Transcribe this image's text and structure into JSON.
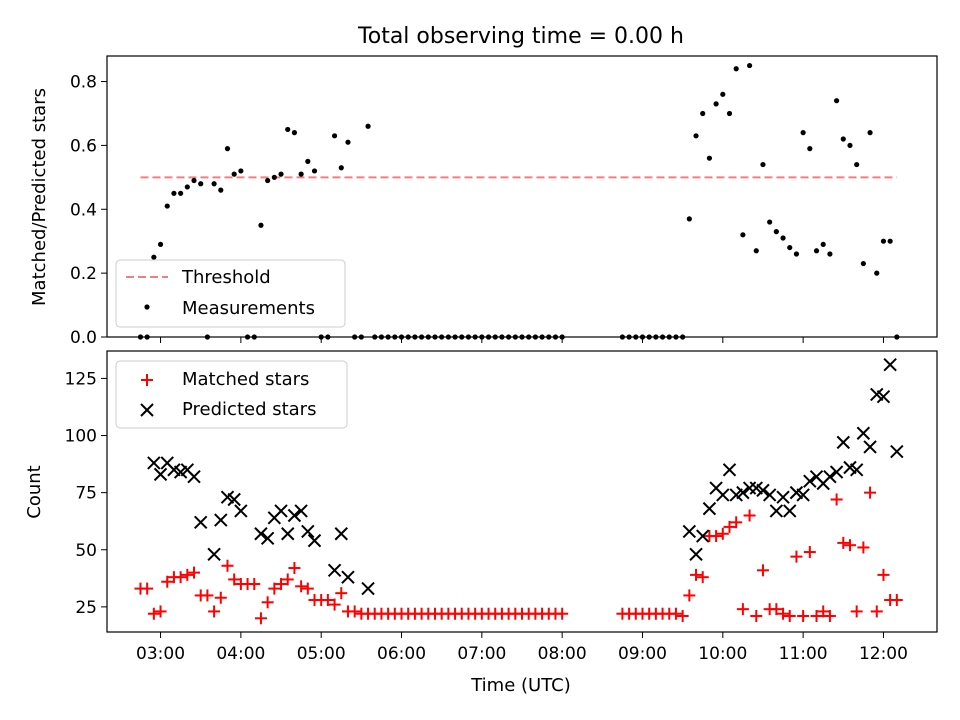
{
  "figure": {
    "title": "Total observing time = 0.00 h"
  },
  "chart_data": [
    {
      "type": "scatter",
      "title": "Total observing time = 0.00 h",
      "xlabel": "",
      "ylabel": "Matched/Predicted stars",
      "xlim": [
        "02:20",
        "12:40"
      ],
      "ylim": [
        0,
        0.88
      ],
      "yticks": [
        0.0,
        0.2,
        0.4,
        0.6,
        0.8
      ],
      "ytick_labels": [
        "0.0",
        "0.2",
        "0.4",
        "0.6",
        "0.8"
      ],
      "xticks": [
        "03:00",
        "04:00",
        "05:00",
        "06:00",
        "07:00",
        "08:00",
        "09:00",
        "10:00",
        "11:00",
        "12:00"
      ],
      "legend": {
        "placement": "lower-left",
        "entries": [
          "Threshold",
          "Measurements"
        ]
      },
      "threshold": {
        "name": "Threshold",
        "value": 0.5,
        "x": [
          "02:45",
          "12:10"
        ],
        "color": "#f08080",
        "style": "dashed"
      },
      "series": [
        {
          "name": "Measurements",
          "marker": "dot",
          "color": "#000000",
          "x": [
            "02:45",
            "02:50",
            "02:55",
            "03:00",
            "03:05",
            "03:10",
            "03:15",
            "03:20",
            "03:25",
            "03:30",
            "03:35",
            "03:40",
            "03:45",
            "03:50",
            "03:55",
            "04:00",
            "04:05",
            "04:10",
            "04:15",
            "04:20",
            "04:25",
            "04:30",
            "04:35",
            "04:40",
            "04:45",
            "04:50",
            "04:55",
            "05:00",
            "05:05",
            "05:10",
            "05:15",
            "05:20",
            "05:25",
            "05:30",
            "05:35",
            "05:40",
            "05:45",
            "05:50",
            "05:55",
            "06:00",
            "06:05",
            "06:10",
            "06:15",
            "06:20",
            "06:25",
            "06:30",
            "06:35",
            "06:40",
            "06:45",
            "06:50",
            "06:55",
            "07:00",
            "07:05",
            "07:10",
            "07:15",
            "07:20",
            "07:25",
            "07:30",
            "07:35",
            "07:40",
            "07:45",
            "07:50",
            "07:55",
            "08:00",
            "08:45",
            "08:50",
            "08:55",
            "09:00",
            "09:05",
            "09:10",
            "09:15",
            "09:20",
            "09:25",
            "09:30",
            "09:35",
            "09:40",
            "09:45",
            "09:50",
            "09:55",
            "10:00",
            "10:05",
            "10:10",
            "10:15",
            "10:20",
            "10:25",
            "10:30",
            "10:35",
            "10:40",
            "10:45",
            "10:50",
            "10:55",
            "11:00",
            "11:05",
            "11:10",
            "11:15",
            "11:20",
            "11:25",
            "11:30",
            "11:35",
            "11:40",
            "11:45",
            "11:50",
            "11:55",
            "12:00",
            "12:05",
            "12:10"
          ],
          "y": [
            0,
            0,
            0.25,
            0.29,
            0.41,
            0.45,
            0.45,
            0.47,
            0.49,
            0.48,
            0,
            0.48,
            0.46,
            0.59,
            0.51,
            0.52,
            0,
            0,
            0.35,
            0.49,
            0.5,
            0.51,
            0.65,
            0.64,
            0.51,
            0.55,
            0.52,
            0,
            0,
            0.63,
            0.53,
            0.61,
            0,
            0,
            0.66,
            0,
            0,
            0,
            0,
            0,
            0,
            0,
            0,
            0,
            0,
            0,
            0,
            0,
            0,
            0,
            0,
            0,
            0,
            0,
            0,
            0,
            0,
            0,
            0,
            0,
            0,
            0,
            0,
            0,
            0,
            0,
            0,
            0,
            0,
            0,
            0,
            0,
            0,
            0,
            0.37,
            0.63,
            0.7,
            0.56,
            0.73,
            0.76,
            0.7,
            0.84,
            0.32,
            0.85,
            0.27,
            0.54,
            0.36,
            0.33,
            0.31,
            0.28,
            0.26,
            0.64,
            0.59,
            0.27,
            0.29,
            0.26,
            0.74,
            0.62,
            0.6,
            0.54,
            0.23,
            0.64,
            0.2,
            0.3,
            0.3,
            0
          ]
        }
      ]
    },
    {
      "type": "scatter",
      "title": "",
      "xlabel": "Time (UTC)",
      "ylabel": "Count",
      "xlim": [
        "02:20",
        "12:40"
      ],
      "ylim": [
        14,
        137
      ],
      "yticks": [
        25,
        50,
        75,
        100,
        125
      ],
      "ytick_labels": [
        "25",
        "50",
        "75",
        "100",
        "125"
      ],
      "xticks": [
        "03:00",
        "04:00",
        "05:00",
        "06:00",
        "07:00",
        "08:00",
        "09:00",
        "10:00",
        "11:00",
        "12:00"
      ],
      "legend": {
        "placement": "top-left",
        "entries": [
          "Matched stars",
          "Predicted stars"
        ]
      },
      "series": [
        {
          "name": "Matched stars",
          "marker": "plus",
          "color": "#ff0000",
          "points": [
            [
              "02:45",
              33
            ],
            [
              "02:50",
              33
            ],
            [
              "02:55",
              22
            ],
            [
              "03:00",
              23
            ],
            [
              "03:05",
              36
            ],
            [
              "03:10",
              38
            ],
            [
              "03:15",
              38
            ],
            [
              "03:20",
              39
            ],
            [
              "03:25",
              40
            ],
            [
              "03:30",
              30
            ],
            [
              "03:35",
              30
            ],
            [
              "03:40",
              23
            ],
            [
              "03:45",
              29
            ],
            [
              "03:50",
              43
            ],
            [
              "03:55",
              37
            ],
            [
              "04:00",
              35
            ],
            [
              "04:05",
              35
            ],
            [
              "04:10",
              35
            ],
            [
              "04:15",
              20
            ],
            [
              "04:20",
              27
            ],
            [
              "04:25",
              33
            ],
            [
              "04:30",
              35
            ],
            [
              "04:35",
              37
            ],
            [
              "04:40",
              42
            ],
            [
              "04:45",
              34
            ],
            [
              "04:50",
              33
            ],
            [
              "04:55",
              28
            ],
            [
              "05:00",
              28
            ],
            [
              "05:05",
              28
            ],
            [
              "05:10",
              26
            ],
            [
              "05:15",
              31
            ],
            [
              "05:20",
              23
            ],
            [
              "05:25",
              23
            ],
            [
              "05:30",
              22
            ],
            [
              "05:35",
              22
            ],
            [
              "05:40",
              22
            ],
            [
              "05:45",
              22
            ],
            [
              "05:50",
              22
            ],
            [
              "05:55",
              22
            ],
            [
              "06:00",
              22
            ],
            [
              "06:05",
              22
            ],
            [
              "06:10",
              22
            ],
            [
              "06:15",
              22
            ],
            [
              "06:20",
              22
            ],
            [
              "06:25",
              22
            ],
            [
              "06:30",
              22
            ],
            [
              "06:35",
              22
            ],
            [
              "06:40",
              22
            ],
            [
              "06:45",
              22
            ],
            [
              "06:50",
              22
            ],
            [
              "06:55",
              22
            ],
            [
              "07:00",
              22
            ],
            [
              "07:05",
              22
            ],
            [
              "07:10",
              22
            ],
            [
              "07:15",
              22
            ],
            [
              "07:20",
              22
            ],
            [
              "07:25",
              22
            ],
            [
              "07:30",
              22
            ],
            [
              "07:35",
              22
            ],
            [
              "07:40",
              22
            ],
            [
              "07:45",
              22
            ],
            [
              "07:50",
              22
            ],
            [
              "07:55",
              22
            ],
            [
              "08:00",
              22
            ],
            [
              "08:45",
              22
            ],
            [
              "08:50",
              22
            ],
            [
              "08:55",
              22
            ],
            [
              "09:00",
              22
            ],
            [
              "09:05",
              22
            ],
            [
              "09:10",
              22
            ],
            [
              "09:15",
              22
            ],
            [
              "09:20",
              22
            ],
            [
              "09:25",
              22
            ],
            [
              "09:30",
              21
            ],
            [
              "09:35",
              30
            ],
            [
              "09:40",
              39
            ],
            [
              "09:45",
              38
            ],
            [
              "09:50",
              56
            ],
            [
              "09:55",
              56
            ],
            [
              "10:00",
              57
            ],
            [
              "10:05",
              60
            ],
            [
              "10:10",
              62
            ],
            [
              "10:15",
              24
            ],
            [
              "10:20",
              65
            ],
            [
              "10:25",
              21
            ],
            [
              "10:30",
              41
            ],
            [
              "10:35",
              24
            ],
            [
              "10:40",
              24
            ],
            [
              "10:45",
              22
            ],
            [
              "10:50",
              21
            ],
            [
              "10:55",
              47
            ],
            [
              "11:00",
              21
            ],
            [
              "11:05",
              49
            ],
            [
              "11:10",
              21
            ],
            [
              "11:15",
              23
            ],
            [
              "11:20",
              21
            ],
            [
              "11:25",
              72
            ],
            [
              "11:30",
              53
            ],
            [
              "11:35",
              52
            ],
            [
              "11:40",
              23
            ],
            [
              "11:45",
              51
            ],
            [
              "11:50",
              75
            ],
            [
              "11:55",
              23
            ],
            [
              "12:00",
              39
            ],
            [
              "12:05",
              28
            ],
            [
              "12:10",
              28
            ]
          ]
        },
        {
          "name": "Predicted stars",
          "marker": "x",
          "color": "#000000",
          "points": [
            [
              "02:55",
              88
            ],
            [
              "03:00",
              83
            ],
            [
              "03:05",
              88
            ],
            [
              "03:10",
              85
            ],
            [
              "03:15",
              84
            ],
            [
              "03:20",
              85
            ],
            [
              "03:25",
              82
            ],
            [
              "03:30",
              62
            ],
            [
              "03:40",
              48
            ],
            [
              "03:45",
              63
            ],
            [
              "03:50",
              73
            ],
            [
              "03:55",
              72
            ],
            [
              "04:00",
              67
            ],
            [
              "04:15",
              57
            ],
            [
              "04:20",
              55
            ],
            [
              "04:25",
              64
            ],
            [
              "04:30",
              67
            ],
            [
              "04:35",
              57
            ],
            [
              "04:40",
              65
            ],
            [
              "04:45",
              67
            ],
            [
              "04:50",
              58
            ],
            [
              "04:55",
              54
            ],
            [
              "05:10",
              41
            ],
            [
              "05:15",
              57
            ],
            [
              "05:20",
              38
            ],
            [
              "05:35",
              33
            ],
            [
              "09:35",
              58
            ],
            [
              "09:40",
              48
            ],
            [
              "09:45",
              56
            ],
            [
              "09:50",
              68
            ],
            [
              "09:55",
              77
            ],
            [
              "10:00",
              74
            ],
            [
              "10:05",
              85
            ],
            [
              "10:10",
              74
            ],
            [
              "10:15",
              75
            ],
            [
              "10:20",
              77
            ],
            [
              "10:25",
              77
            ],
            [
              "10:30",
              76
            ],
            [
              "10:35",
              74
            ],
            [
              "10:40",
              67
            ],
            [
              "10:45",
              73
            ],
            [
              "10:50",
              67
            ],
            [
              "10:55",
              75
            ],
            [
              "11:00",
              74
            ],
            [
              "11:05",
              80
            ],
            [
              "11:10",
              82
            ],
            [
              "11:15",
              79
            ],
            [
              "11:20",
              82
            ],
            [
              "11:25",
              84
            ],
            [
              "11:30",
              97
            ],
            [
              "11:35",
              86
            ],
            [
              "11:40",
              85
            ],
            [
              "11:45",
              101
            ],
            [
              "11:50",
              95
            ],
            [
              "11:55",
              118
            ],
            [
              "12:00",
              117
            ],
            [
              "12:05",
              131
            ],
            [
              "12:10",
              93
            ]
          ]
        }
      ]
    }
  ]
}
